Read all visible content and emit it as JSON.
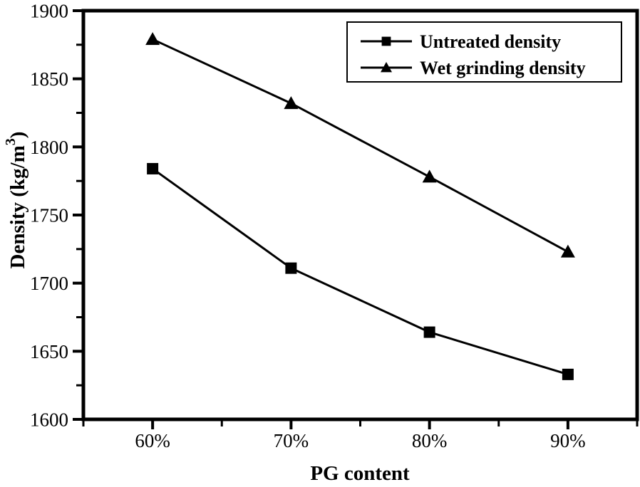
{
  "chart_data": {
    "type": "line",
    "xlabel": "PG content",
    "ylabel": "Density (kg/m³)",
    "ylabel_parts": {
      "main": "Density (kg/m",
      "sup": "3",
      "end": ")"
    },
    "categories": [
      "60%",
      "70%",
      "80%",
      "90%"
    ],
    "series": [
      {
        "name": "Untreated density",
        "marker": "square",
        "values": [
          1784,
          1711,
          1664,
          1633
        ]
      },
      {
        "name": "Wet grinding density",
        "marker": "triangle",
        "values": [
          1879,
          1832,
          1778,
          1723
        ]
      }
    ],
    "ylim": [
      1600,
      1900
    ],
    "y_major_step": 50,
    "y_minor_step": 25,
    "grid": false,
    "legend_position": "top-right",
    "colors": {
      "foreground": "#000000",
      "background": "#ffffff"
    }
  }
}
